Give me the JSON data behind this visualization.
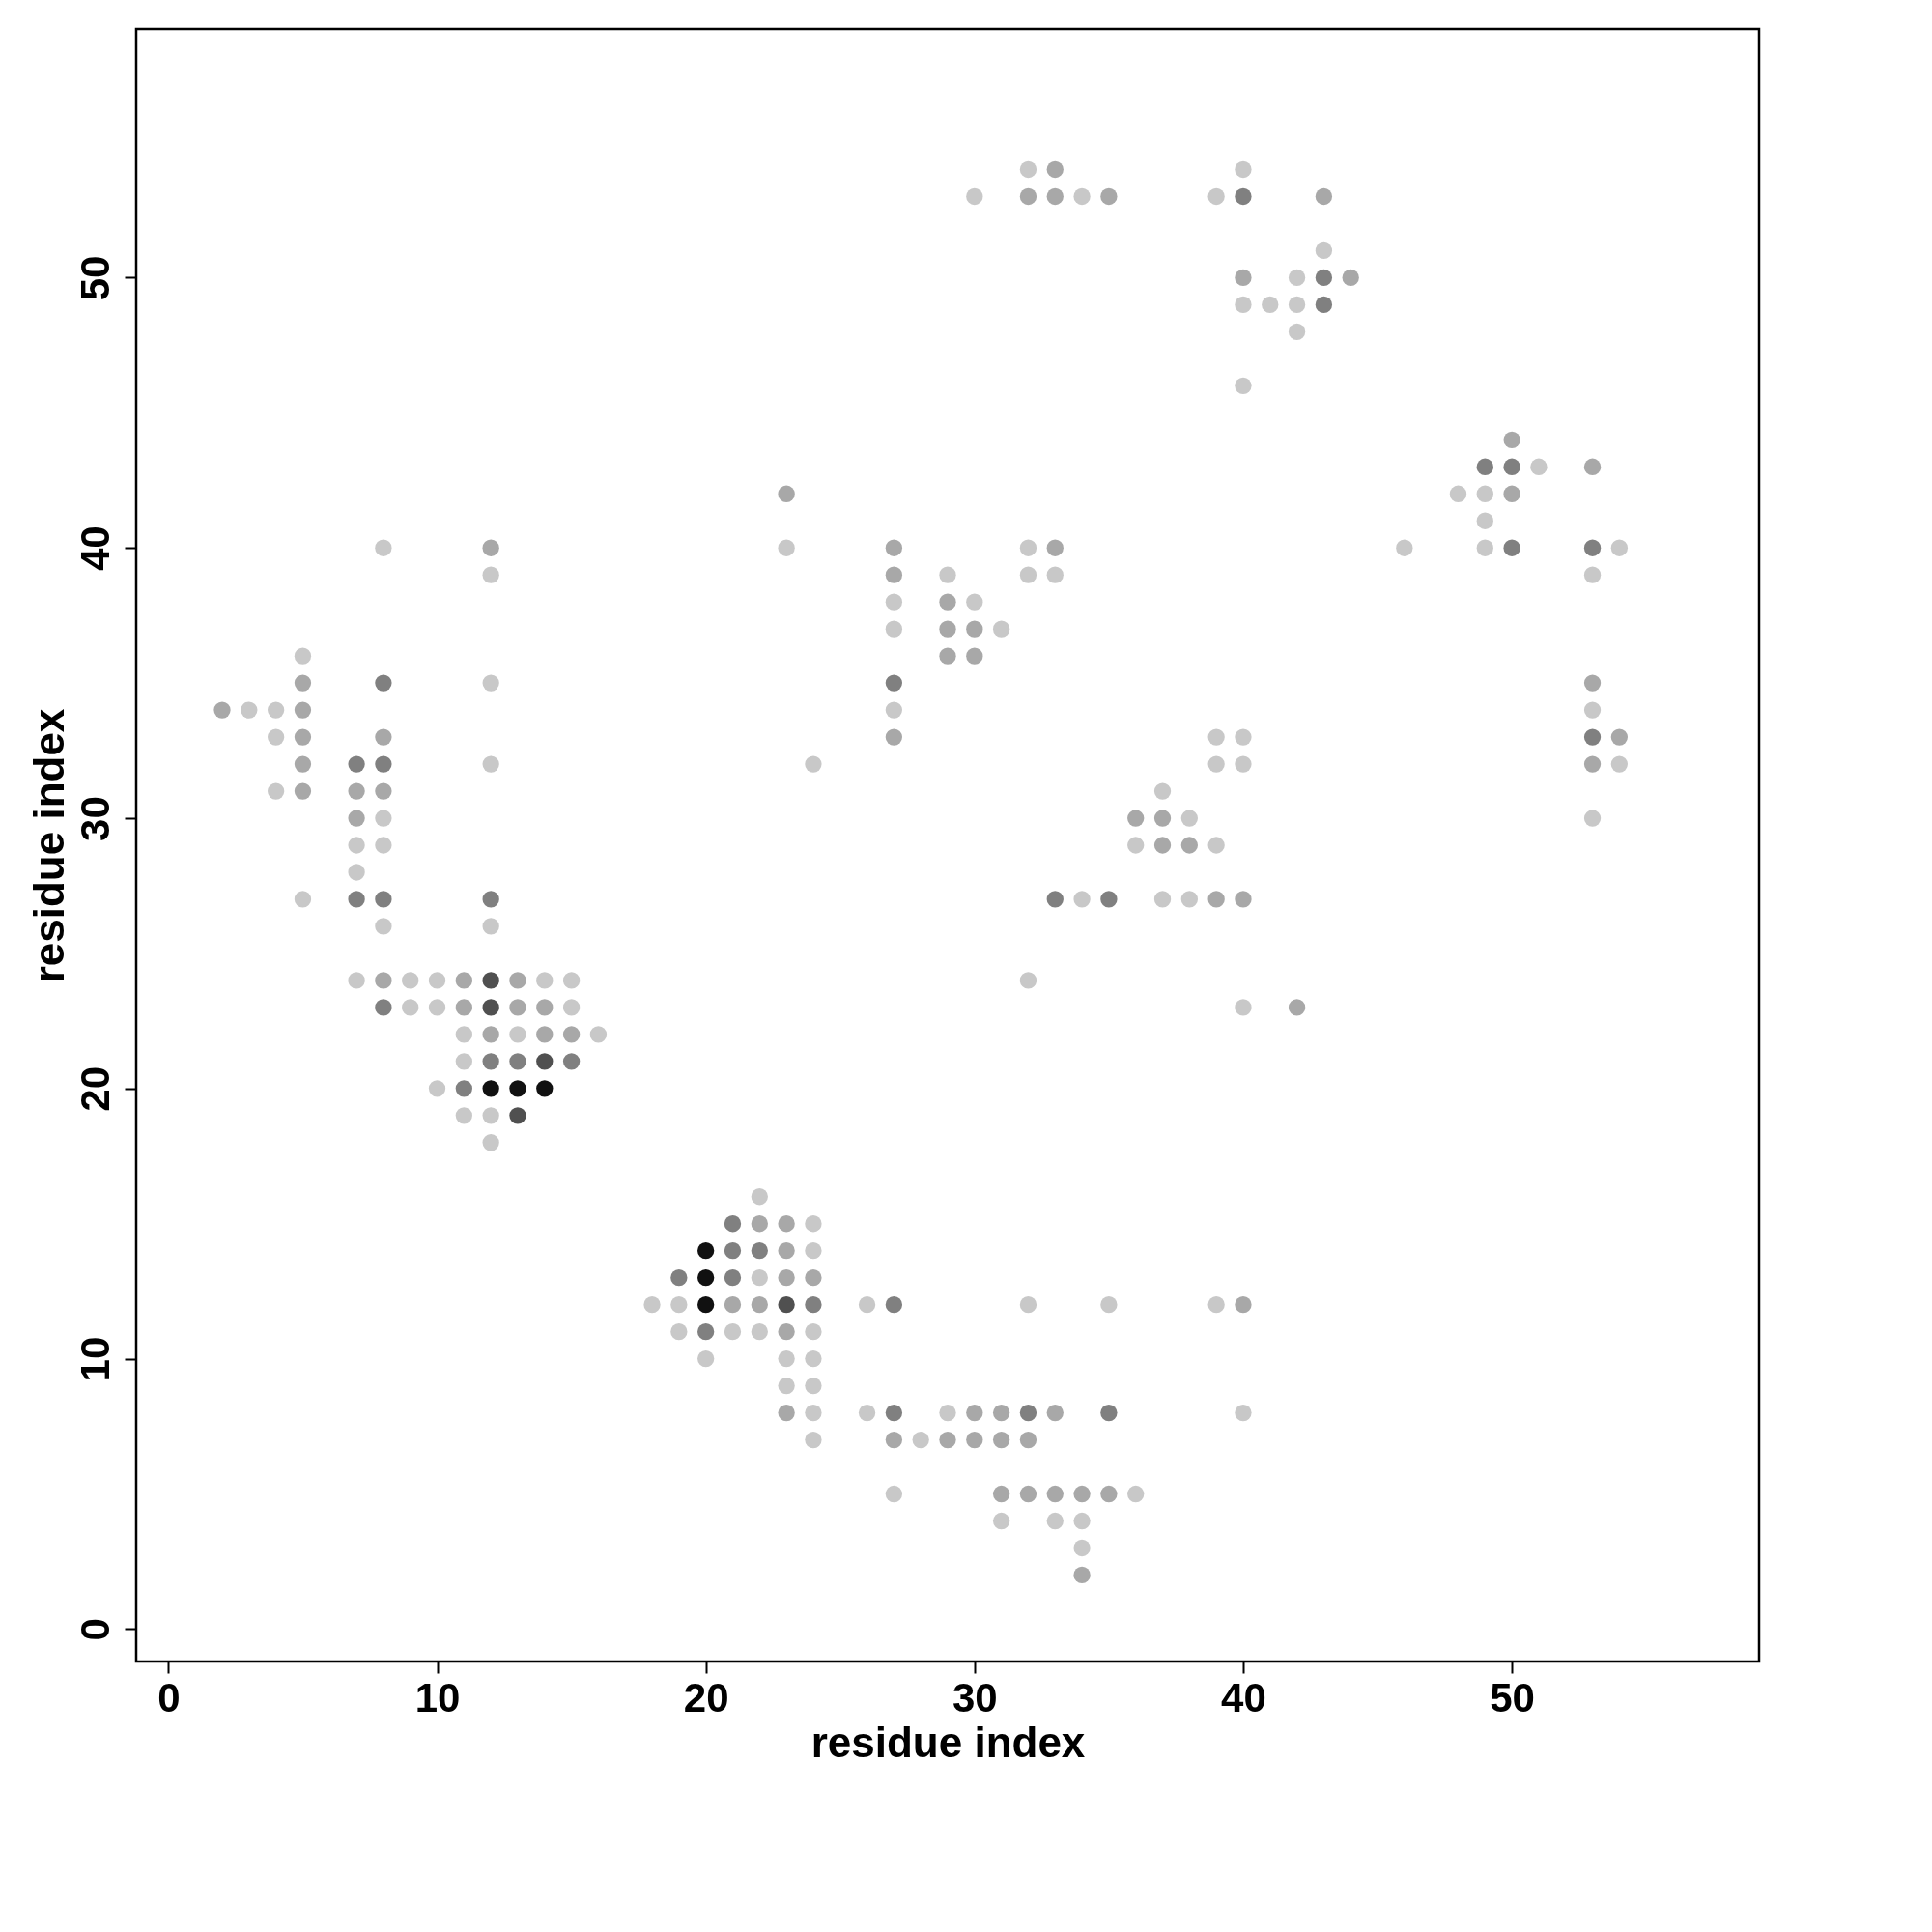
{
  "chart_data": {
    "type": "scatter",
    "xlabel": "residue index",
    "ylabel": "residue index",
    "xlim": [
      -1.2,
      59.2
    ],
    "ylim": [
      -1.2,
      59.2
    ],
    "xticks": [
      0,
      10,
      20,
      30,
      40,
      50
    ],
    "yticks": [
      0,
      10,
      20,
      30,
      40,
      50
    ],
    "grid": false,
    "legend": false,
    "marker": "circle",
    "series": [
      {
        "color": "#c8c8c8",
        "x": [
          3,
          4,
          5,
          4,
          4,
          5,
          7,
          7,
          7,
          8,
          8,
          8,
          8,
          9,
          9,
          10,
          10,
          10,
          11,
          11,
          11,
          12,
          12,
          12,
          12,
          12,
          12,
          13,
          14,
          15,
          15,
          16,
          18,
          19,
          19,
          20,
          21,
          22,
          22,
          22,
          23,
          23,
          23,
          24,
          24,
          24,
          24,
          24,
          24,
          24,
          24,
          26,
          26,
          27,
          27,
          27,
          27,
          28,
          29,
          29,
          30,
          30,
          31,
          31,
          32,
          32,
          32,
          32,
          32,
          33,
          33,
          34,
          34,
          34,
          34,
          35,
          36,
          36,
          37,
          37,
          38,
          38,
          39,
          39,
          39,
          39,
          39,
          40,
          40,
          40,
          40,
          40,
          40,
          40,
          41,
          42,
          42,
          42,
          43,
          46,
          48,
          49,
          49,
          49,
          51,
          53,
          53,
          53,
          54,
          54
        ],
        "values": [
          34,
          34,
          36,
          33,
          31,
          27,
          29,
          28,
          24,
          40,
          30,
          29,
          26,
          24,
          23,
          24,
          23,
          20,
          22,
          21,
          19,
          39,
          35,
          32,
          26,
          19,
          18,
          22,
          24,
          24,
          23,
          22,
          12,
          12,
          11,
          10,
          11,
          16,
          13,
          11,
          40,
          10,
          9,
          32,
          15,
          14,
          11,
          10,
          9,
          8,
          7,
          12,
          8,
          38,
          37,
          34,
          5,
          7,
          39,
          8,
          53,
          38,
          37,
          4,
          54,
          40,
          39,
          24,
          12,
          39,
          4,
          53,
          27,
          4,
          3,
          12,
          29,
          5,
          31,
          27,
          30,
          27,
          53,
          33,
          32,
          29,
          12,
          54,
          49,
          46,
          33,
          32,
          23,
          8,
          49,
          50,
          49,
          48,
          51,
          40,
          42,
          42,
          41,
          40,
          43,
          39,
          34,
          30,
          40,
          32
        ]
      },
      {
        "color": "#a8a8a8",
        "x": [
          2,
          5,
          5,
          5,
          5,
          5,
          7,
          7,
          8,
          8,
          8,
          11,
          11,
          12,
          12,
          13,
          13,
          14,
          14,
          15,
          21,
          22,
          22,
          23,
          23,
          23,
          23,
          23,
          23,
          24,
          27,
          27,
          27,
          27,
          29,
          29,
          29,
          29,
          30,
          30,
          30,
          30,
          31,
          31,
          31,
          32,
          32,
          32,
          33,
          33,
          33,
          33,
          33,
          34,
          34,
          35,
          35,
          36,
          37,
          37,
          38,
          39,
          40,
          40,
          40,
          42,
          43,
          44,
          50,
          50,
          53,
          53,
          53,
          54
        ],
        "values": [
          34,
          35,
          34,
          33,
          32,
          31,
          31,
          30,
          33,
          31,
          24,
          24,
          23,
          40,
          22,
          24,
          23,
          23,
          22,
          22,
          12,
          15,
          12,
          42,
          15,
          14,
          13,
          11,
          8,
          13,
          40,
          39,
          33,
          7,
          38,
          37,
          36,
          7,
          37,
          36,
          8,
          7,
          8,
          7,
          5,
          53,
          7,
          5,
          54,
          53,
          40,
          8,
          5,
          5,
          2,
          53,
          5,
          30,
          30,
          29,
          29,
          27,
          50,
          27,
          12,
          23,
          53,
          50,
          44,
          42,
          43,
          35,
          32,
          33
        ]
      },
      {
        "color": "#808080",
        "x": [
          7,
          7,
          8,
          8,
          8,
          8,
          11,
          12,
          12,
          13,
          15,
          19,
          20,
          21,
          21,
          21,
          22,
          24,
          27,
          27,
          27,
          32,
          33,
          35,
          35,
          40,
          43,
          43,
          49,
          50,
          50,
          53,
          53
        ],
        "values": [
          32,
          27,
          35,
          32,
          27,
          23,
          20,
          27,
          21,
          21,
          21,
          13,
          11,
          15,
          14,
          13,
          14,
          12,
          35,
          12,
          8,
          8,
          27,
          27,
          8,
          53,
          50,
          49,
          43,
          43,
          40,
          40,
          33
        ]
      },
      {
        "color": "#505050",
        "x": [
          12,
          12,
          13,
          14,
          23
        ],
        "values": [
          24,
          23,
          19,
          21,
          12
        ]
      },
      {
        "color": "#111111",
        "x": [
          12,
          13,
          14,
          20,
          20,
          20
        ],
        "values": [
          20,
          20,
          20,
          14,
          13,
          12
        ]
      }
    ]
  }
}
